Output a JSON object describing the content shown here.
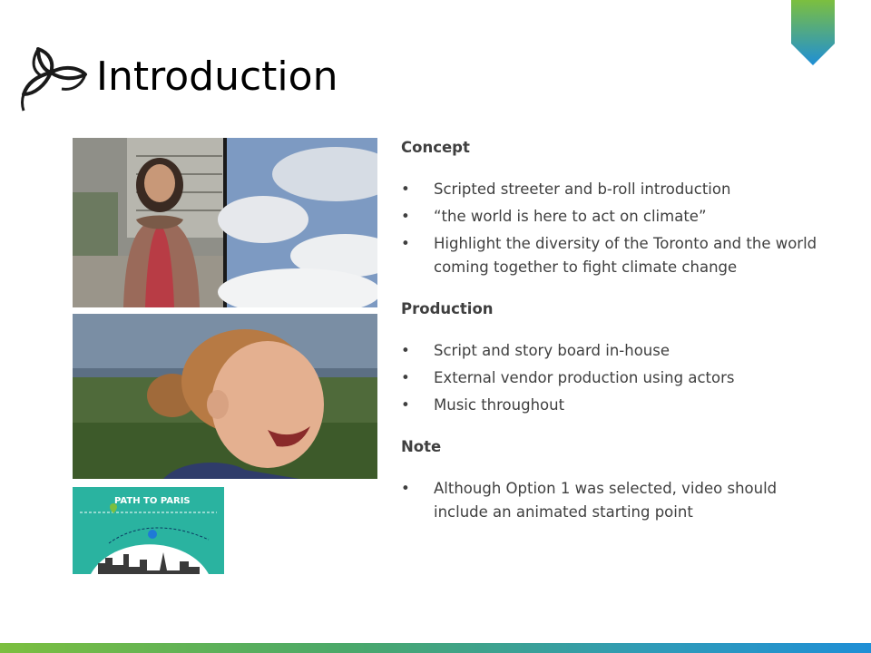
{
  "slide": {
    "title": "Introduction",
    "brand_colors": {
      "green": "#7cbf3f",
      "blue": "#1f8fd6"
    },
    "sections": [
      {
        "heading": "Concept",
        "bullets": [
          "Scripted streeter and b-roll introduction",
          "“the world is here to act on climate”",
          "Highlight the diversity of the Toronto and the world coming together to fight climate change"
        ]
      },
      {
        "heading": "Production",
        "bullets": [
          "Script and story board in-house",
          "External vendor production using actors",
          "Music throughout"
        ]
      },
      {
        "heading": "Note",
        "bullets": [
          "Although Option 1 was selected, video should include an animated starting point"
        ]
      }
    ],
    "bullet_char": "•",
    "images": {
      "badge_text": "PATH TO PARIS"
    }
  }
}
